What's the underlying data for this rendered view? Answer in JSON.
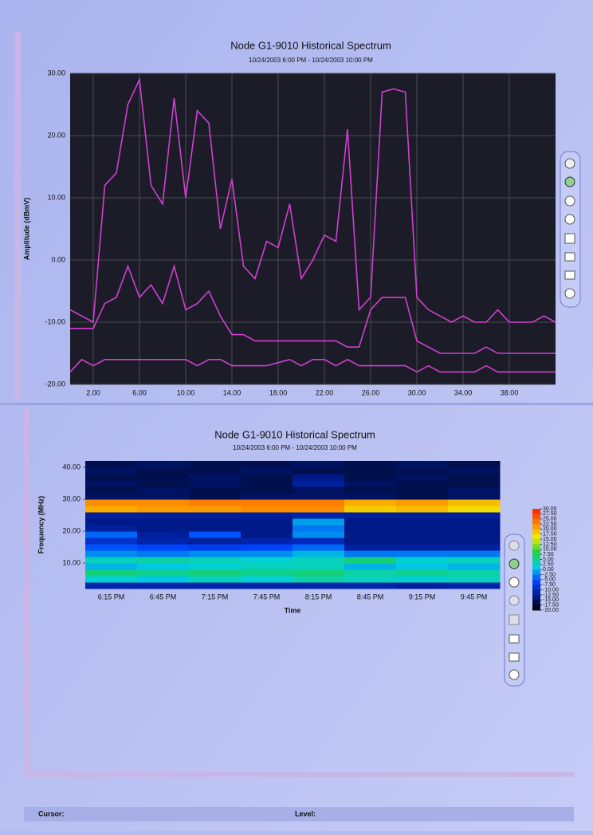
{
  "chart_data": [
    {
      "type": "line",
      "title": "Node G1-9010 Historical Spectrum",
      "subtitle": "10/24/2003 6:00 PM - 10/24/2003 10:00 PM",
      "y_label": "Amplitude (dBmV)",
      "x": [
        0,
        1,
        2,
        3,
        4,
        5,
        6,
        7,
        8,
        9,
        10,
        11,
        12,
        13,
        14,
        15,
        16,
        17,
        18,
        19,
        20,
        21,
        22,
        23,
        24,
        25,
        26,
        27,
        28,
        29,
        30,
        31,
        32,
        33,
        34,
        35,
        36,
        37,
        38,
        39,
        40,
        41,
        42
      ],
      "series": [
        {
          "color": "#d040d0",
          "values": [
            -8,
            -9,
            -10,
            12,
            14,
            25,
            29,
            12,
            9,
            26,
            10,
            24,
            22,
            5,
            13,
            -1,
            -3,
            3,
            2,
            9,
            -3,
            0,
            4,
            3,
            21,
            -8,
            -6,
            27,
            27.5,
            27,
            -6,
            -8,
            -9,
            -10,
            -9,
            -10,
            -10,
            -8,
            -10,
            -10,
            -10,
            -9,
            -10
          ]
        },
        {
          "color": "#d040d0",
          "values": [
            -11,
            -11,
            -11,
            -7,
            -6,
            -1,
            -6,
            -4,
            -7,
            -1,
            -8,
            -7,
            -5,
            -9,
            -12,
            -12,
            -13,
            -13,
            -13,
            -13,
            -13,
            -13,
            -13,
            -13,
            -14,
            -14,
            -8,
            -6,
            -6,
            -6,
            -13,
            -14,
            -15,
            -15,
            -15,
            -15,
            -14,
            -15,
            -15,
            -15,
            -15,
            -15,
            -15
          ]
        },
        {
          "color": "#d040d0",
          "values": [
            -18,
            -16,
            -17,
            -16,
            -16,
            -16,
            -16,
            -16,
            -16,
            -16,
            -16,
            -17,
            -16,
            -16,
            -17,
            -17,
            -17,
            -17,
            -16.5,
            -16,
            -17,
            -16,
            -16,
            -17,
            -16,
            -17,
            -17,
            -17,
            -17,
            -17,
            -18,
            -17,
            -18,
            -18,
            -18,
            -18,
            -17,
            -18,
            -18,
            -18,
            -18,
            -18,
            -18
          ]
        }
      ],
      "xlim": [
        0,
        42
      ],
      "ylim": [
        -20,
        30
      ],
      "xticks": [
        {
          "value": 2,
          "label": "2.00"
        },
        {
          "value": 6,
          "label": "6.00"
        },
        {
          "value": 10,
          "label": "10.00"
        },
        {
          "value": 14,
          "label": "14.00"
        },
        {
          "value": 18,
          "label": "18.00"
        },
        {
          "value": 22,
          "label": "22.00"
        },
        {
          "value": 26,
          "label": "26.00"
        },
        {
          "value": 30,
          "label": "30.00"
        },
        {
          "value": 34,
          "label": "34.00"
        },
        {
          "value": 38,
          "label": "38.00"
        }
      ],
      "yticks": [
        {
          "value": -20,
          "label": "-20.00"
        },
        {
          "value": -10,
          "label": "-10.00"
        },
        {
          "value": 0,
          "label": "0.00"
        },
        {
          "value": 10,
          "label": "10.00"
        },
        {
          "value": 20,
          "label": "20.00"
        },
        {
          "value": 30,
          "label": "30.00"
        }
      ],
      "grid": true,
      "background": "#1c1c28"
    },
    {
      "type": "heatmap",
      "title": "Node G1-9010 Historical Spectrum",
      "subtitle": "10/24/2003 6:00 PM - 10/24/2003 10:00 PM",
      "x_label": "Time",
      "y_label": "Frequency (MHz)",
      "categories": [
        "6:15 PM",
        "6:45 PM",
        "7:15 PM",
        "7:45 PM",
        "8:15 PM",
        "8:45 PM",
        "9:15 PM",
        "9:45 PM"
      ],
      "y_bins": [
        2,
        4,
        6,
        8,
        10,
        12,
        14,
        16,
        18,
        20,
        22,
        24,
        26,
        28,
        30,
        32,
        34,
        36,
        38,
        40,
        42
      ],
      "z": [
        [
          -11,
          -11,
          -11,
          -11,
          -11,
          -11,
          -12,
          -11
        ],
        [
          2,
          1,
          3,
          2,
          4,
          3,
          2,
          3
        ],
        [
          6,
          5,
          6,
          5,
          6,
          4,
          5,
          4
        ],
        [
          0,
          1,
          2,
          3,
          3,
          0,
          1,
          0
        ],
        [
          3,
          4,
          3,
          2,
          3,
          6,
          2,
          3
        ],
        [
          -2,
          -3,
          -2,
          -2,
          0,
          -3,
          -3,
          -3
        ],
        [
          -5,
          -6,
          -7,
          -6,
          -4,
          -12,
          -12,
          -12
        ],
        [
          -9,
          -11,
          -12,
          -11,
          -10,
          -13,
          -13,
          -13
        ],
        [
          -4,
          -12,
          -5,
          -13,
          -2,
          -13,
          -13,
          -13
        ],
        [
          -12,
          -13,
          -13,
          -13,
          -3,
          -13,
          -13,
          -13
        ],
        [
          -13,
          -13,
          -13,
          -13,
          -1,
          -13,
          -13,
          -13
        ],
        [
          -12,
          -12,
          -12,
          -12,
          -11,
          -12,
          -12,
          -12
        ],
        [
          20,
          21,
          21,
          22,
          22,
          18,
          19,
          17
        ],
        [
          22,
          22,
          23,
          23,
          23,
          20,
          21,
          19
        ],
        [
          -15,
          -15,
          -16,
          -15,
          -15,
          -15,
          -16,
          -15
        ],
        [
          -16,
          -15,
          -16,
          -16,
          -15,
          -16,
          -16,
          -15
        ],
        [
          -15,
          -16,
          -15,
          -16,
          -12,
          -15,
          -16,
          -16
        ],
        [
          -16,
          -16,
          -15,
          -16,
          -13,
          -16,
          -15,
          -16
        ],
        [
          -15,
          -16,
          -16,
          -15,
          -16,
          -16,
          -16,
          -15
        ],
        [
          -16,
          -15,
          -16,
          -16,
          -15,
          -16,
          -15,
          -16
        ]
      ],
      "ylim": [
        2,
        42
      ],
      "yticks": [
        {
          "value": 10,
          "label": "10.00"
        },
        {
          "value": 20,
          "label": "20.00"
        },
        {
          "value": 30,
          "label": "30.00"
        },
        {
          "value": 40,
          "label": "40.00"
        }
      ],
      "zlim": [
        -20,
        30
      ],
      "zticks": [
        {
          "value": 30,
          "label": "30.00"
        },
        {
          "value": 27.5,
          "label": "27.50"
        },
        {
          "value": 25,
          "label": "25.00"
        },
        {
          "value": 22.5,
          "label": "22.50"
        },
        {
          "value": 20,
          "label": "20.00"
        },
        {
          "value": 17.5,
          "label": "17.50"
        },
        {
          "value": 15,
          "label": "15.00"
        },
        {
          "value": 12.5,
          "label": "12.50"
        },
        {
          "value": 10,
          "label": "10.00"
        },
        {
          "value": 7.5,
          "label": "7.50"
        },
        {
          "value": 5,
          "label": "5.00"
        },
        {
          "value": 2.5,
          "label": "2.50"
        },
        {
          "value": 0,
          "label": "0.00"
        },
        {
          "value": -2.5,
          "label": "-2.50"
        },
        {
          "value": -5,
          "label": "-5.00"
        },
        {
          "value": -7.5,
          "label": "-7.50"
        },
        {
          "value": -10,
          "label": "-10.00"
        },
        {
          "value": -12.5,
          "label": "-12.50"
        },
        {
          "value": -15,
          "label": "-15.00"
        },
        {
          "value": -17.5,
          "label": "-17.50"
        },
        {
          "value": -20,
          "label": "-20.00"
        }
      ],
      "colorscale": [
        "#000000",
        "#001a8c",
        "#0044ff",
        "#00d0e0",
        "#20d040",
        "#f0f000",
        "#ff8000",
        "#ff2000"
      ]
    }
  ],
  "status_bar": {
    "cursor_label": "Cursor:",
    "level_label": "Level:"
  }
}
